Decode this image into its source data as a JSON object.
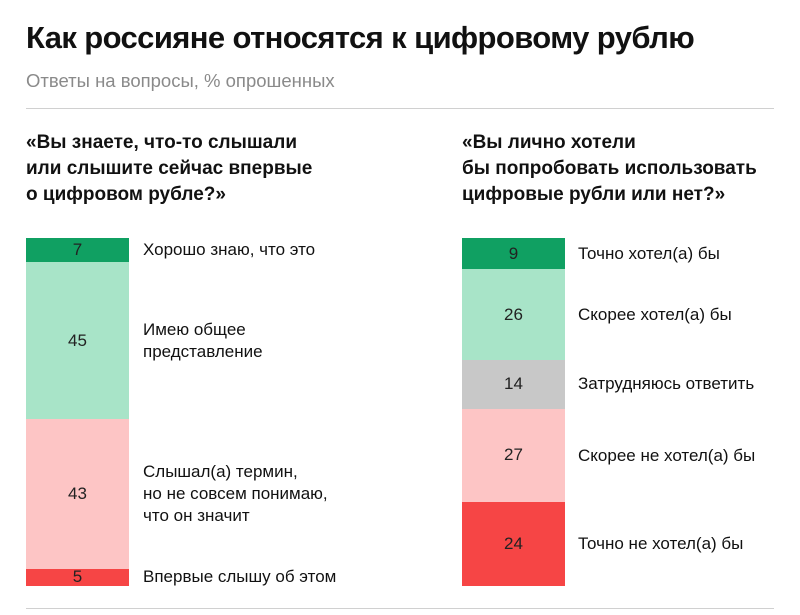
{
  "title": "Как россияне относятся к цифровому рублю",
  "subtitle": "Ответы на вопросы, % опрошенных",
  "chart_data": [
    {
      "type": "bar",
      "stacked": true,
      "orientation": "vertical",
      "title": "«Вы знаете, что-то слышали\nили слышите сейчас впервые\nо цифровом рубле?»",
      "categories": [
        "Хорошо знаю, что это",
        "Имею общее\nпредставление",
        "Слышал(а) термин,\nно не совсем понимаю,\nчто он значит",
        "Впервые слышу об этом"
      ],
      "values": [
        7,
        45,
        43,
        5
      ],
      "colors": [
        "#10a062",
        "#a8e4c8",
        "#fdc5c5",
        "#f64545"
      ]
    },
    {
      "type": "bar",
      "stacked": true,
      "orientation": "vertical",
      "title": "«Вы лично хотели\nбы попробовать использовать\nцифровые рубли или нет?»",
      "categories": [
        "Точно хотел(а) бы",
        "Скорее хотел(а) бы",
        "Затрудняюсь ответить",
        "Скорее не хотел(а) бы",
        "Точно не хотел(а) бы"
      ],
      "values": [
        9,
        26,
        14,
        27,
        24
      ],
      "colors": [
        "#10a062",
        "#a8e4c8",
        "#c8c8c8",
        "#fdc5c5",
        "#f64545"
      ]
    }
  ]
}
